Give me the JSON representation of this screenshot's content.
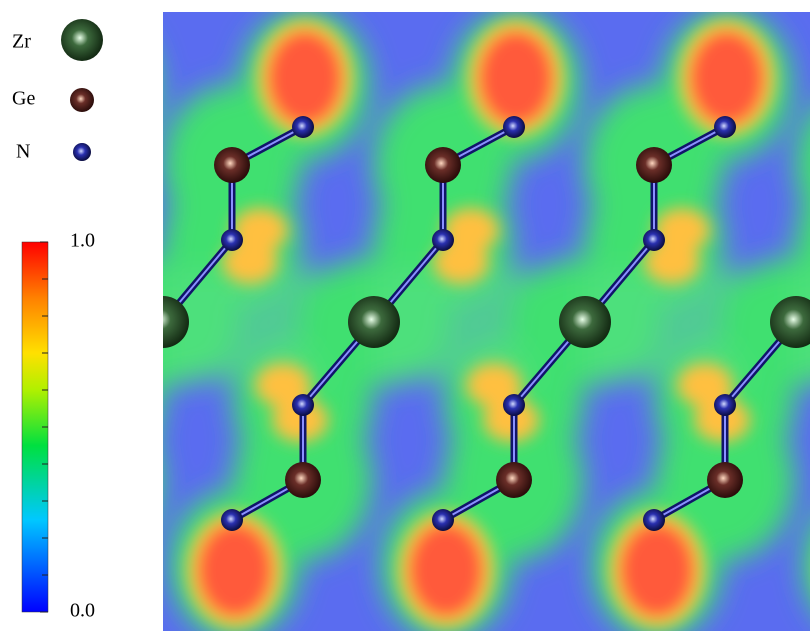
{
  "legend": [
    {
      "label": "Zr"
    },
    {
      "label": "Ge"
    },
    {
      "label": "N"
    }
  ],
  "colorbar": {
    "ticks": [
      {
        "value": 1,
        "label": "1.0"
      },
      {
        "value": 0,
        "label": "0.0"
      }
    ]
  }
}
